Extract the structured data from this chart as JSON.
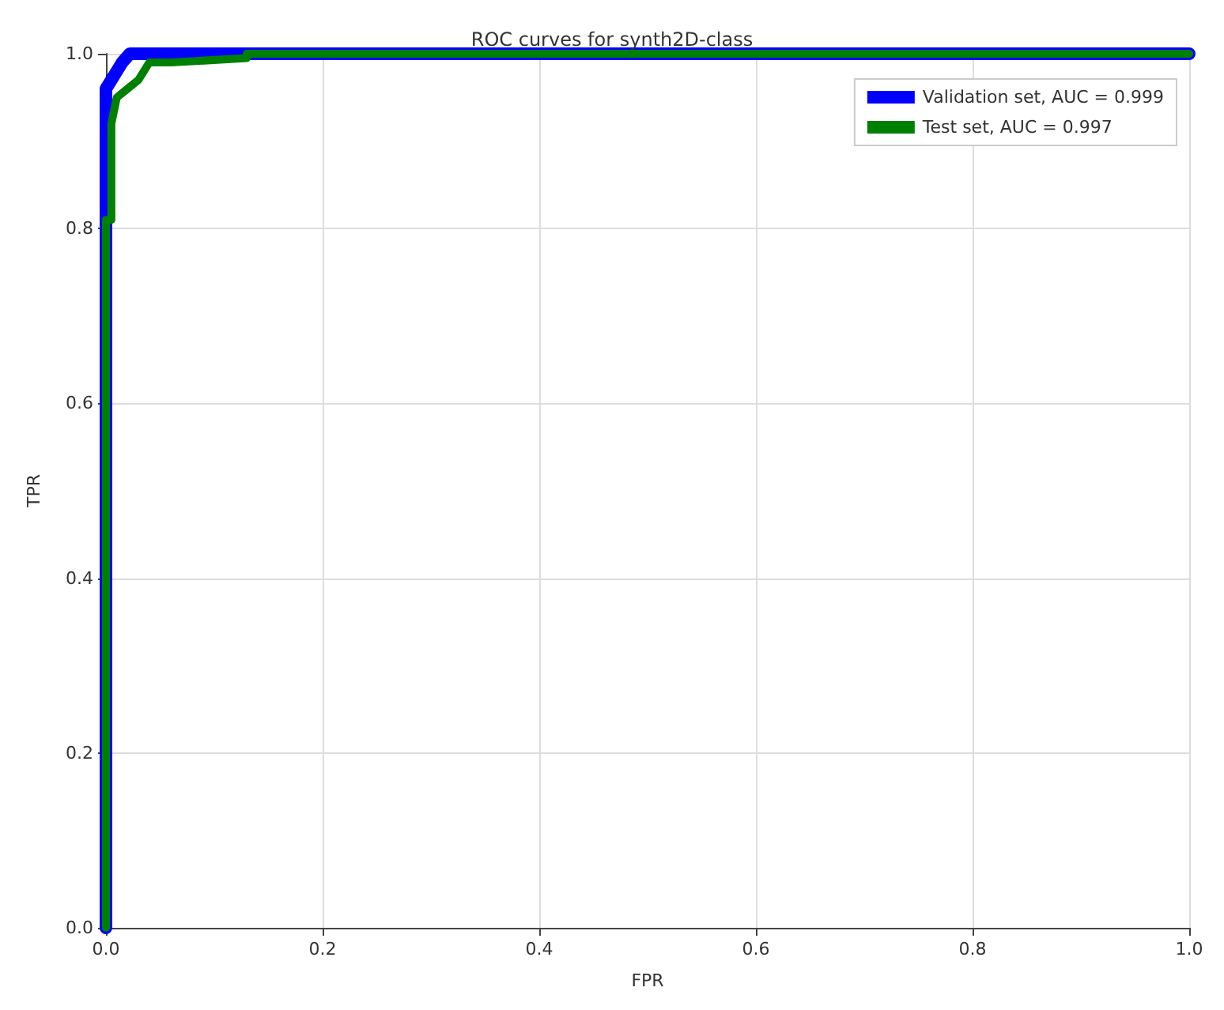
{
  "chart_data": {
    "type": "line",
    "title": "ROC curves for synth2D-class",
    "xlabel": "FPR",
    "ylabel": "TPR",
    "xlim": [
      0,
      1
    ],
    "ylim": [
      0,
      1
    ],
    "xticks": [
      {
        "value": 0,
        "label": "0.0"
      },
      {
        "value": 0.2,
        "label": "0.2"
      },
      {
        "value": 0.4,
        "label": "0.4"
      },
      {
        "value": 0.6,
        "label": "0.6"
      },
      {
        "value": 0.8,
        "label": "0.8"
      },
      {
        "value": 1,
        "label": "1.0"
      }
    ],
    "yticks": [
      {
        "value": 0,
        "label": "0.0"
      },
      {
        "value": 0.2,
        "label": "0.2"
      },
      {
        "value": 0.4,
        "label": "0.4"
      },
      {
        "value": 0.6,
        "label": "0.6"
      },
      {
        "value": 0.8,
        "label": "0.8"
      },
      {
        "value": 1,
        "label": "1.0"
      }
    ],
    "grid": true,
    "legend": "top right",
    "marker": "none",
    "line_style": "solid",
    "series": [
      {
        "name": "Validation set, AUC = 0.999",
        "color": "#0000ff",
        "x": [
          0,
          0,
          0.005,
          0.01,
          0.015,
          0.022,
          1
        ],
        "values": [
          0,
          0.96,
          0.97,
          0.98,
          0.99,
          1,
          1
        ]
      },
      {
        "name": "Test set, AUC = 0.997",
        "color": "#008000",
        "x": [
          0,
          0,
          0.005,
          0.005,
          0.01,
          0.02,
          0.03,
          0.04,
          0.06,
          0.13,
          0.13,
          1
        ],
        "values": [
          0,
          0.81,
          0.81,
          0.92,
          0.95,
          0.96,
          0.97,
          0.99,
          0.99,
          0.995,
          1,
          1
        ]
      }
    ]
  }
}
